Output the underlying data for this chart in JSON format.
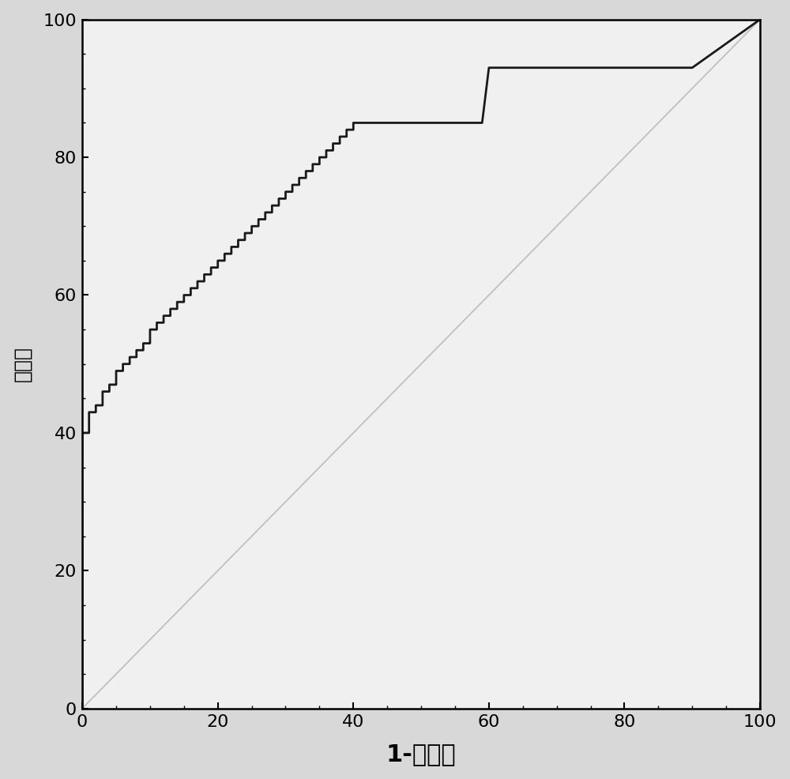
{
  "title": "",
  "xlabel": "1-特异性",
  "ylabel": "灵敏度",
  "xlim": [
    0,
    100
  ],
  "ylim": [
    0,
    100
  ],
  "xticks": [
    0,
    20,
    40,
    60,
    80,
    100
  ],
  "yticks": [
    0,
    20,
    40,
    60,
    80,
    100
  ],
  "background_color": "#d8d8d8",
  "plot_bg_color": "#f0f0f0",
  "roc_color": "#1a1a1a",
  "diagonal_color": "#c0c0c0",
  "roc_linewidth": 2.0,
  "diagonal_linewidth": 1.3,
  "xlabel_fontsize": 22,
  "ylabel_fontsize": 18,
  "tick_fontsize": 16,
  "roc_x": [
    0,
    0,
    1,
    1,
    2,
    2,
    3,
    3,
    4,
    4,
    5,
    5,
    6,
    6,
    7,
    7,
    8,
    8,
    9,
    9,
    10,
    10,
    11,
    11,
    12,
    12,
    13,
    13,
    14,
    14,
    15,
    15,
    16,
    16,
    17,
    17,
    18,
    18,
    19,
    19,
    20,
    20,
    21,
    21,
    22,
    22,
    23,
    23,
    24,
    24,
    25,
    25,
    26,
    26,
    27,
    27,
    28,
    28,
    29,
    29,
    30,
    30,
    31,
    31,
    32,
    32,
    33,
    33,
    34,
    34,
    35,
    35,
    36,
    36,
    37,
    37,
    38,
    38,
    39,
    39,
    40,
    40,
    41,
    42,
    43,
    44,
    45,
    46,
    47,
    48,
    49,
    50,
    51,
    52,
    53,
    54,
    55,
    56,
    57,
    58,
    59,
    60,
    61,
    62,
    63,
    64,
    65,
    66,
    67,
    68,
    69,
    70,
    71,
    72,
    73,
    74,
    75,
    76,
    77,
    78,
    79,
    80,
    81,
    82,
    83,
    84,
    85,
    86,
    87,
    88,
    89,
    90,
    100
  ],
  "roc_y": [
    0,
    40,
    40,
    43,
    43,
    44,
    44,
    46,
    46,
    47,
    47,
    49,
    49,
    50,
    50,
    51,
    51,
    52,
    52,
    53,
    53,
    55,
    55,
    56,
    56,
    57,
    57,
    58,
    58,
    59,
    59,
    60,
    60,
    61,
    61,
    62,
    62,
    63,
    63,
    64,
    64,
    65,
    65,
    66,
    66,
    67,
    67,
    68,
    68,
    69,
    69,
    70,
    70,
    71,
    71,
    72,
    72,
    73,
    73,
    74,
    74,
    75,
    75,
    76,
    76,
    77,
    77,
    78,
    78,
    79,
    79,
    80,
    80,
    81,
    81,
    82,
    82,
    83,
    83,
    84,
    84,
    85,
    85,
    85,
    85,
    85,
    85,
    85,
    85,
    85,
    85,
    85,
    85,
    85,
    85,
    85,
    85,
    85,
    85,
    85,
    85,
    93,
    93,
    93,
    93,
    93,
    93,
    93,
    93,
    93,
    93,
    93,
    93,
    93,
    93,
    93,
    93,
    93,
    93,
    93,
    93,
    93,
    93,
    93,
    93,
    93,
    93,
    93,
    93,
    93,
    93,
    93,
    100
  ]
}
